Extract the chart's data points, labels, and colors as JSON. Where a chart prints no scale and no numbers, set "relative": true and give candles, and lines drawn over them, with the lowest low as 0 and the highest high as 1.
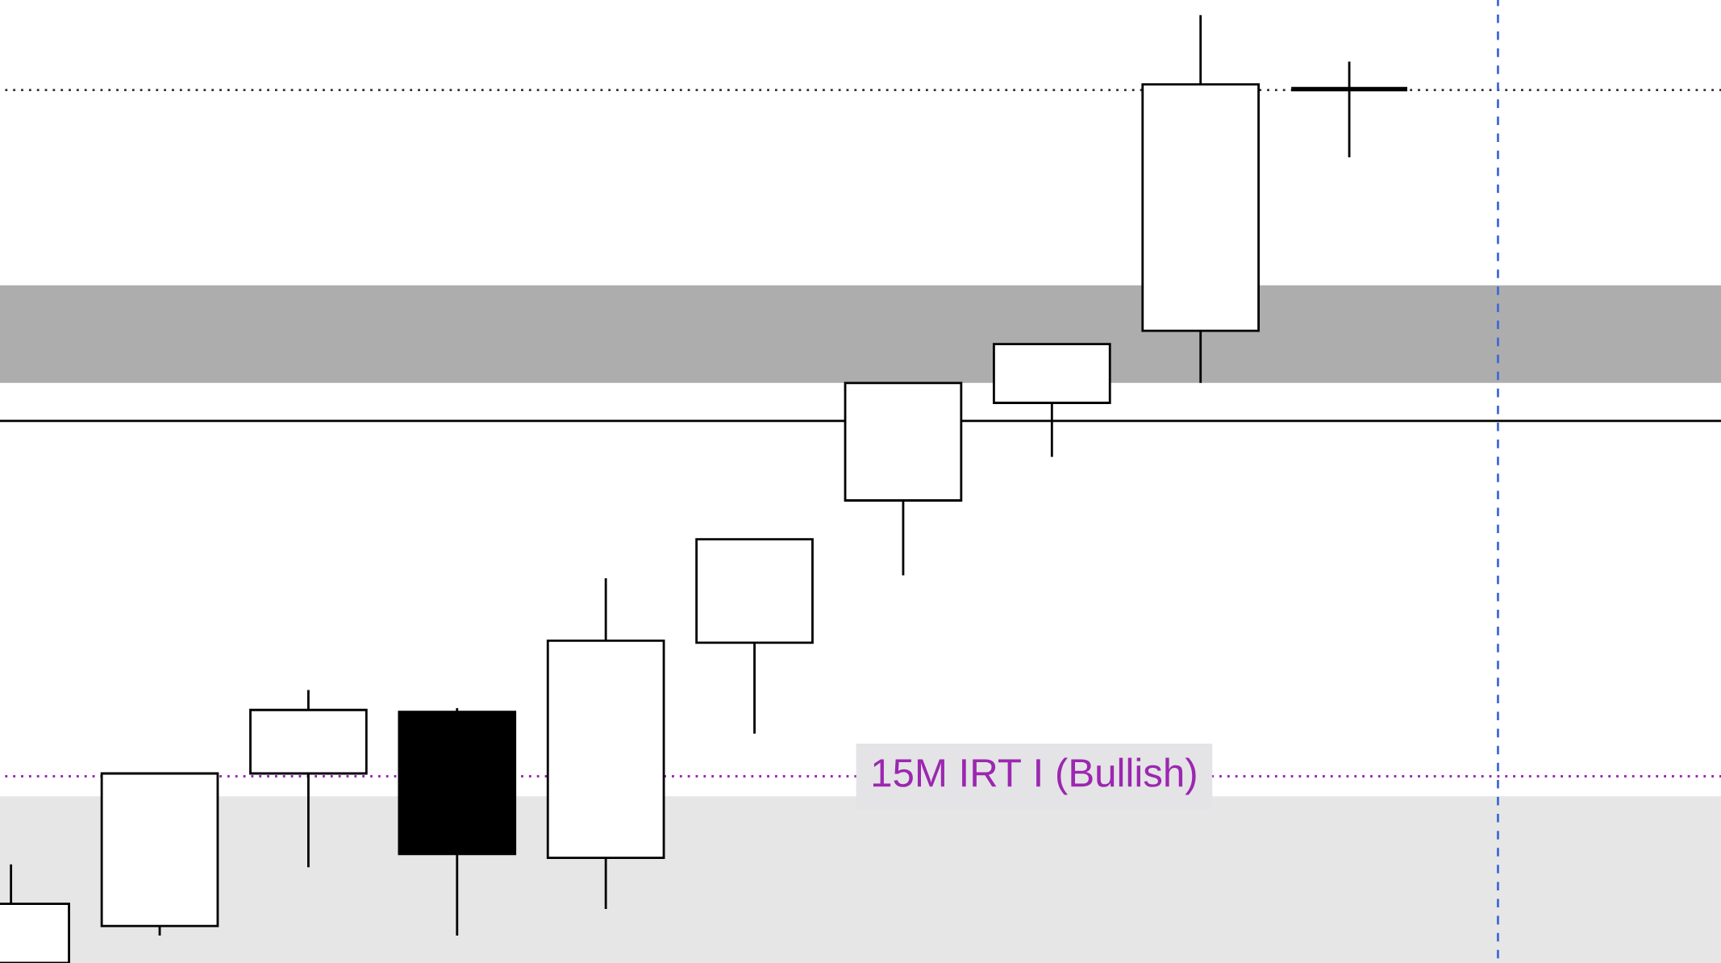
{
  "chart_data": {
    "type": "candlestick",
    "relative": true,
    "categories": [
      null,
      null,
      null,
      null,
      null,
      null,
      null,
      null,
      null,
      null
    ],
    "ohlc": [
      [
        0,
        0.104,
        0,
        0.0625
      ],
      [
        0.039,
        0.2,
        0.029,
        0.2
      ],
      [
        0.2,
        0.288,
        0.101,
        0.267
      ],
      [
        0.265,
        0.269,
        0.029,
        0.115
      ],
      [
        0.111,
        0.406,
        0.057,
        0.34
      ],
      [
        0.338,
        0.447,
        0.242,
        0.447
      ],
      [
        0.488,
        0.612,
        0.409,
        0.612
      ],
      [
        0.591,
        0.653,
        0.534,
        0.653
      ],
      [
        0.667,
        1,
        0.612,
        0.927
      ],
      [
        0.922,
        0.951,
        0.85,
        0.922
      ]
    ],
    "bands": [
      {
        "axis": "y",
        "from": 0,
        "to": 0.176,
        "color": "#e6e6e6"
      },
      {
        "axis": "y",
        "from": 0.612,
        "to": 0.715,
        "color": "#adadad"
      }
    ],
    "ref_lines": [
      {
        "axis": "y",
        "value": 0.921,
        "color": "#333333",
        "line_style": "dotted"
      },
      {
        "axis": "y",
        "value": 0.197,
        "label": "15M IRT I (Bullish)",
        "color": "#9c27b0",
        "line_style": "dotted"
      },
      {
        "axis": "y",
        "value": 0.572,
        "color": "#000000",
        "line_style": "solid"
      }
    ]
  }
}
